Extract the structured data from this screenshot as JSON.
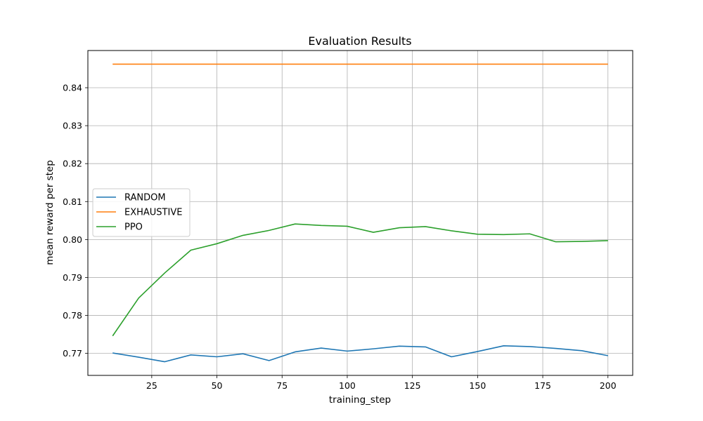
{
  "chart_data": {
    "type": "line",
    "title": "Evaluation Results",
    "xlabel": "training_step",
    "ylabel": "mean reward per step",
    "xlim": [
      0.5,
      209.5
    ],
    "ylim": [
      0.7642,
      0.8498
    ],
    "x_ticks": [
      25,
      50,
      75,
      100,
      125,
      150,
      175,
      200
    ],
    "y_ticks": [
      0.77,
      0.78,
      0.79,
      0.8,
      0.81,
      0.82,
      0.83,
      0.84
    ],
    "x_tick_labels": [
      "25",
      "50",
      "75",
      "100",
      "125",
      "150",
      "175",
      "200"
    ],
    "y_tick_labels": [
      "0.77",
      "0.78",
      "0.79",
      "0.80",
      "0.81",
      "0.82",
      "0.83",
      "0.84"
    ],
    "grid": true,
    "legend_position": "center-left",
    "x": [
      10,
      20,
      30,
      40,
      50,
      60,
      70,
      80,
      90,
      100,
      110,
      120,
      130,
      140,
      150,
      160,
      170,
      180,
      190,
      200
    ],
    "series": [
      {
        "name": "RANDOM",
        "color": "#1f77b4",
        "values": [
          0.7701,
          0.769,
          0.7678,
          0.7696,
          0.7691,
          0.7699,
          0.7681,
          0.7704,
          0.7714,
          0.7706,
          0.7712,
          0.7719,
          0.7717,
          0.7691,
          0.7705,
          0.772,
          0.7718,
          0.7713,
          0.7707,
          0.7694
        ]
      },
      {
        "name": "EXHAUSTIVE",
        "color": "#ff7f0e",
        "values": [
          0.8462,
          0.8462,
          0.8462,
          0.8462,
          0.8462,
          0.8462,
          0.8462,
          0.8462,
          0.8462,
          0.8462,
          0.8462,
          0.8462,
          0.8462,
          0.8462,
          0.8462,
          0.8462,
          0.8462,
          0.8462,
          0.8462,
          0.8462
        ]
      },
      {
        "name": "PPO",
        "color": "#2ca02c",
        "values": [
          0.7746,
          0.7846,
          0.7912,
          0.7972,
          0.7989,
          0.8011,
          0.8024,
          0.8041,
          0.8037,
          0.8035,
          0.8019,
          0.8031,
          0.8034,
          0.8023,
          0.8014,
          0.8013,
          0.8015,
          0.7994,
          0.7995,
          0.7997
        ]
      }
    ]
  }
}
